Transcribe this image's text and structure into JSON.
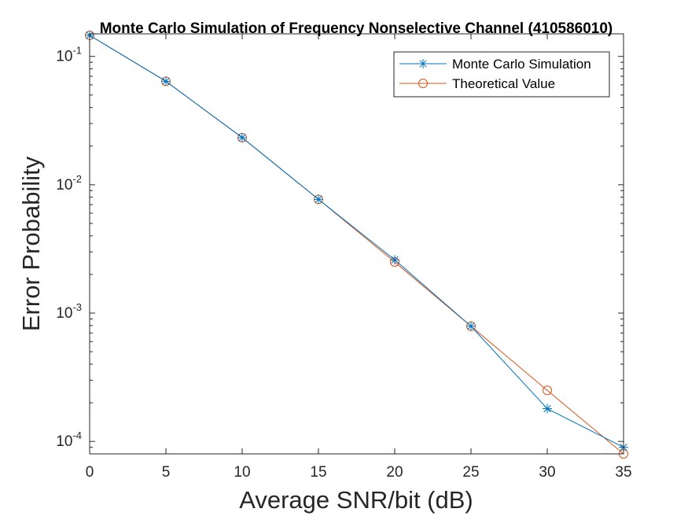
{
  "chart_data": {
    "type": "line",
    "title": "Monte Carlo Simulation of Frequency Nonselective Channel (410586010)",
    "xlabel": "Average SNR/bit (dB)",
    "ylabel": "Error Probability",
    "yscale": "log",
    "xlim": [
      0,
      35
    ],
    "ylim": [
      8e-05,
      0.15
    ],
    "grid": false,
    "legend_position": "top-right",
    "x": [
      0,
      5,
      10,
      15,
      20,
      25,
      30,
      35
    ],
    "xticks": [
      "0",
      "5",
      "10",
      "15",
      "20",
      "25",
      "30",
      "35"
    ],
    "yticks": [
      {
        "value": 0.0001,
        "base": "10",
        "exp": "-4"
      },
      {
        "value": 0.001,
        "base": "10",
        "exp": "-3"
      },
      {
        "value": 0.01,
        "base": "10",
        "exp": "-2"
      },
      {
        "value": 0.1,
        "base": "10",
        "exp": "-1"
      }
    ],
    "series": [
      {
        "name": "Monte Carlo Simulation",
        "color": "#0072BD",
        "marker": "asterisk",
        "values": [
          0.146,
          0.064,
          0.0233,
          0.0077,
          0.0026,
          0.00079,
          0.00018,
          9e-05
        ]
      },
      {
        "name": "Theoretical Value",
        "color": "#D95319",
        "marker": "circle",
        "values": [
          0.146,
          0.064,
          0.0233,
          0.0077,
          0.0025,
          0.00079,
          0.00025,
          8e-05
        ]
      }
    ]
  }
}
